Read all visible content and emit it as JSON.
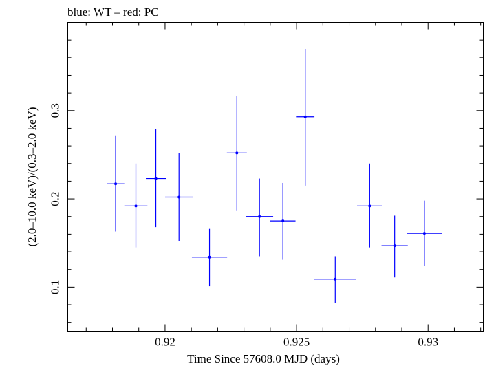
{
  "chart_data": {
    "type": "scatter",
    "title": "blue: WT – red: PC",
    "xlabel": "Time Since 57608.0 MJD (days)",
    "ylabel": "(2.0–10.0 keV)/(0.3–2.0 keV)",
    "xlim": [
      0.9163,
      0.9321
    ],
    "ylim": [
      0.05,
      0.4
    ],
    "xticks": [
      0.92,
      0.925,
      0.93
    ],
    "xtick_labels": [
      "0.92",
      "0.925",
      "0.93"
    ],
    "yticks": [
      0.1,
      0.2,
      0.3
    ],
    "ytick_labels": [
      "0.1",
      "0.2",
      "0.3"
    ],
    "grid": false,
    "series": [
      {
        "color": "#0000ff",
        "points": [
          {
            "x": 0.91812,
            "y": 0.217,
            "xerr": 0.00033,
            "ylo": 0.163,
            "yhi": 0.272
          },
          {
            "x": 0.91889,
            "y": 0.192,
            "xerr": 0.00044,
            "ylo": 0.145,
            "yhi": 0.24
          },
          {
            "x": 0.91965,
            "y": 0.223,
            "xerr": 0.00038,
            "ylo": 0.168,
            "yhi": 0.279
          },
          {
            "x": 0.92053,
            "y": 0.202,
            "xerr": 0.00053,
            "ylo": 0.152,
            "yhi": 0.252
          },
          {
            "x": 0.92169,
            "y": 0.134,
            "xerr": 0.00067,
            "ylo": 0.101,
            "yhi": 0.166
          },
          {
            "x": 0.92273,
            "y": 0.252,
            "xerr": 0.00038,
            "ylo": 0.187,
            "yhi": 0.317
          },
          {
            "x": 0.92359,
            "y": 0.18,
            "xerr": 0.00052,
            "ylo": 0.135,
            "yhi": 0.223
          },
          {
            "x": 0.92448,
            "y": 0.175,
            "xerr": 0.00048,
            "ylo": 0.131,
            "yhi": 0.218
          },
          {
            "x": 0.92533,
            "y": 0.293,
            "xerr": 0.00035,
            "ylo": 0.215,
            "yhi": 0.37
          },
          {
            "x": 0.92647,
            "y": 0.109,
            "xerr": 0.0008,
            "ylo": 0.082,
            "yhi": 0.135
          },
          {
            "x": 0.92778,
            "y": 0.192,
            "xerr": 0.00048,
            "ylo": 0.145,
            "yhi": 0.24
          },
          {
            "x": 0.92873,
            "y": 0.147,
            "xerr": 0.0005,
            "ylo": 0.111,
            "yhi": 0.181
          },
          {
            "x": 0.92986,
            "y": 0.161,
            "xerr": 0.00066,
            "ylo": 0.124,
            "yhi": 0.198
          }
        ]
      }
    ]
  }
}
